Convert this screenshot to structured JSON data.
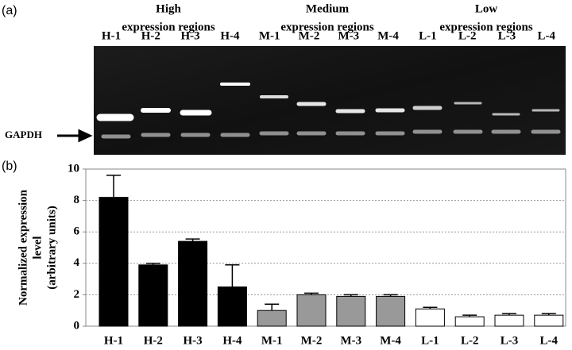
{
  "panel_a": "(a)",
  "panel_b": "(b)",
  "gel": {
    "groups": [
      [
        "High",
        "expression regions"
      ],
      [
        "Medium",
        "expression regions"
      ],
      [
        "Low",
        "expression regions"
      ]
    ],
    "lanes": [
      "H-1",
      "H-2",
      "H-3",
      "H-4",
      "M-1",
      "M-2",
      "M-3",
      "M-4",
      "L-1",
      "L-2",
      "L-3",
      "L-4"
    ],
    "marker": "GAPDH"
  },
  "chart_data": {
    "type": "bar",
    "ylabel": [
      "Normalized expression",
      "level",
      "(arbitrary units)"
    ],
    "categories": [
      "H-1",
      "H-2",
      "H-3",
      "H-4",
      "M-1",
      "M-2",
      "M-3",
      "M-4",
      "L-1",
      "L-2",
      "L-3",
      "L-4"
    ],
    "values": [
      8.2,
      3.9,
      5.4,
      2.5,
      1.0,
      2.0,
      1.9,
      1.9,
      1.1,
      0.6,
      0.7,
      0.7
    ],
    "errors": [
      1.4,
      0.1,
      0.15,
      1.4,
      0.4,
      0.1,
      0.1,
      0.1,
      0.1,
      0.1,
      0.1,
      0.1
    ],
    "colors": [
      "#000000",
      "#000000",
      "#000000",
      "#000000",
      "#999999",
      "#999999",
      "#999999",
      "#999999",
      "#ffffff",
      "#ffffff",
      "#ffffff",
      "#ffffff"
    ],
    "ylim": [
      0,
      10
    ],
    "yticks": [
      0,
      2,
      4,
      6,
      8,
      10
    ],
    "grid": true
  }
}
